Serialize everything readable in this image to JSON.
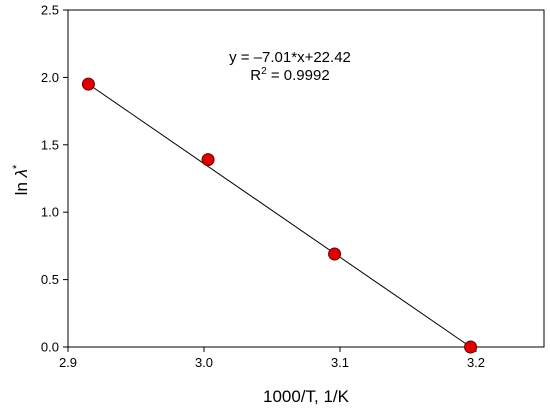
{
  "chart_data": {
    "type": "scatter",
    "xlabel": "1000/T, 1/K",
    "ylabel": {
      "prefix": "ln ",
      "symbol": "λ",
      "superscript": "*"
    },
    "xlim": [
      2.9,
      3.25
    ],
    "ylim": [
      0.0,
      2.5
    ],
    "xticks": [
      2.9,
      3.0,
      3.1,
      3.2
    ],
    "xtick_labels": [
      "2.9",
      "3.0",
      "3.1",
      "3.2"
    ],
    "yticks": [
      0.0,
      0.5,
      1.0,
      1.5,
      2.0,
      2.5
    ],
    "ytick_labels": [
      "0.0",
      "0.5",
      "1.0",
      "1.5",
      "2.0",
      "2.5"
    ],
    "points": [
      {
        "x": 2.915,
        "y": 1.95
      },
      {
        "x": 3.003,
        "y": 1.39
      },
      {
        "x": 3.096,
        "y": 0.69
      },
      {
        "x": 3.196,
        "y": 0.0
      }
    ],
    "fit_line": {
      "x": [
        2.915,
        3.196
      ],
      "y": [
        1.95,
        0.0
      ]
    },
    "equation": {
      "line1": "y = –7.01*x+22.42",
      "r2_prefix": "R",
      "r2_exp": "2",
      "r2_suffix": " = 0.9992"
    },
    "marker_color": "#e00000",
    "marker_edge_color": "#6b0000",
    "line_color": "#000000",
    "grid": false,
    "legend": "none"
  }
}
